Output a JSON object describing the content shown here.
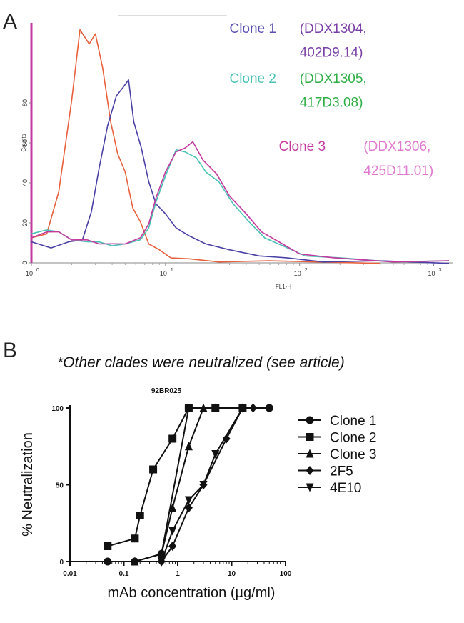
{
  "chart_data": [
    {
      "type": "line",
      "panel_label": "A",
      "xlabel": "FL1-H",
      "ylabel": "Counts",
      "xscale": "log",
      "xlim": [
        1,
        1400
      ],
      "ylim": [
        0,
        120
      ],
      "xticks": [
        {
          "value": 1,
          "base": "10",
          "exp": "0"
        },
        {
          "value": 10,
          "base": "10",
          "exp": "1"
        },
        {
          "value": 100,
          "base": "10",
          "exp": "2"
        },
        {
          "value": 1000,
          "base": "10",
          "exp": "3"
        }
      ],
      "yticks": [
        0,
        20,
        40,
        60,
        80
      ],
      "annotations": [
        {
          "text": "Clone 1",
          "color": "#5a4fb0",
          "x": 30,
          "y": 115
        },
        {
          "text": "(DDX1304,",
          "color": "#7b3fa8",
          "x": 100,
          "y": 115
        },
        {
          "text": "402D9.14)",
          "color": "#7b3fa8",
          "x": 100,
          "y": 103
        },
        {
          "text": "Clone 2",
          "color": "#48c2b4",
          "x": 30,
          "y": 90
        },
        {
          "text": "(DDX1305,",
          "color": "#2fae46",
          "x": 100,
          "y": 90
        },
        {
          "text": "417D3.08)",
          "color": "#2fae46",
          "x": 100,
          "y": 78
        },
        {
          "text": "Clone 3",
          "color": "#c4389f",
          "x": 70,
          "y": 56
        },
        {
          "text": "(DDX1306,",
          "color": "#e07ad0",
          "x": 300,
          "y": 56
        },
        {
          "text": "425D11.01)",
          "color": "#e07ad0",
          "x": 300,
          "y": 44
        }
      ],
      "series": [
        {
          "color": "#e8603c",
          "points": [
            [
              1,
              12
            ],
            [
              1.3,
              15
            ],
            [
              1.6,
              35
            ],
            [
              2.0,
              82
            ],
            [
              2.3,
              116
            ],
            [
              2.7,
              110
            ],
            [
              3.0,
              114
            ],
            [
              3.4,
              98
            ],
            [
              3.9,
              70
            ],
            [
              4.4,
              55
            ],
            [
              5.0,
              45
            ],
            [
              5.7,
              28
            ],
            [
              6.5,
              20
            ],
            [
              7.5,
              10
            ],
            [
              9,
              6
            ],
            [
              11,
              3
            ],
            [
              15,
              1.5
            ],
            [
              25,
              1
            ],
            [
              60,
              0.5
            ],
            [
              400,
              0.3
            ]
          ]
        },
        {
          "color": "#4a40a6",
          "points": [
            [
              1,
              10
            ],
            [
              1.4,
              8
            ],
            [
              1.9,
              10
            ],
            [
              2.4,
              12
            ],
            [
              2.8,
              25
            ],
            [
              3.2,
              48
            ],
            [
              3.7,
              68
            ],
            [
              4.3,
              84
            ],
            [
              4.8,
              87
            ],
            [
              5.3,
              92
            ],
            [
              5.8,
              70
            ],
            [
              6.6,
              58
            ],
            [
              7.5,
              40
            ],
            [
              8.5,
              30
            ],
            [
              10,
              24
            ],
            [
              12,
              18
            ],
            [
              15,
              13
            ],
            [
              20,
              10
            ],
            [
              30,
              6
            ],
            [
              50,
              4
            ],
            [
              80,
              2
            ],
            [
              150,
              1
            ],
            [
              400,
              0.5
            ],
            [
              1300,
              0.3
            ]
          ]
        },
        {
          "color": "#48c2b4",
          "points": [
            [
              1,
              14
            ],
            [
              1.3,
              17
            ],
            [
              1.6,
              15
            ],
            [
              2.0,
              12
            ],
            [
              2.6,
              10
            ],
            [
              3.2,
              11
            ],
            [
              4.0,
              8
            ],
            [
              5.0,
              10
            ],
            [
              6.5,
              11
            ],
            [
              7.5,
              18
            ],
            [
              8.5,
              30
            ],
            [
              10,
              44
            ],
            [
              12,
              56
            ],
            [
              14,
              56
            ],
            [
              17,
              52
            ],
            [
              20,
              46
            ],
            [
              25,
              40
            ],
            [
              32,
              30
            ],
            [
              42,
              20
            ],
            [
              55,
              13
            ],
            [
              75,
              8
            ],
            [
              110,
              4
            ],
            [
              200,
              2
            ],
            [
              500,
              1
            ],
            [
              1300,
              0.5
            ]
          ]
        },
        {
          "color": "#c4389f",
          "points": [
            [
              1,
              12
            ],
            [
              1.3,
              16
            ],
            [
              1.6,
              15
            ],
            [
              2.0,
              12
            ],
            [
              2.6,
              11
            ],
            [
              3.2,
              10
            ],
            [
              4.0,
              9
            ],
            [
              5.0,
              10
            ],
            [
              6.5,
              12
            ],
            [
              7.5,
              20
            ],
            [
              8.5,
              32
            ],
            [
              10,
              46
            ],
            [
              12,
              55
            ],
            [
              14,
              58
            ],
            [
              16,
              60
            ],
            [
              19,
              52
            ],
            [
              24,
              44
            ],
            [
              30,
              34
            ],
            [
              40,
              24
            ],
            [
              52,
              16
            ],
            [
              70,
              10
            ],
            [
              100,
              5
            ],
            [
              180,
              2
            ],
            [
              500,
              1
            ],
            [
              1300,
              0.5
            ]
          ]
        }
      ]
    },
    {
      "type": "line",
      "panel_label": "B",
      "note": "*Other clades were neutralized (see article)",
      "title": "92BR025",
      "xlabel": "mAb concentration (µg/ml)",
      "ylabel": "% Neutralization",
      "xscale": "log",
      "xlim": [
        0.01,
        100
      ],
      "ylim": [
        0,
        100
      ],
      "xticks": [
        {
          "value": 0.01,
          "label": "0.01"
        },
        {
          "value": 0.1,
          "label": "0.1"
        },
        {
          "value": 1,
          "label": "1"
        },
        {
          "value": 10,
          "label": "10"
        },
        {
          "value": 100,
          "label": "100"
        }
      ],
      "yticks": [
        {
          "value": 0,
          "label": "0"
        },
        {
          "value": 50,
          "label": "50"
        },
        {
          "value": 100,
          "label": "100"
        }
      ],
      "series": [
        {
          "name": "Clone 1",
          "marker": "circle",
          "points": [
            [
              0.05,
              0
            ],
            [
              0.16,
              0
            ],
            [
              0.5,
              5
            ],
            [
              1.6,
              100
            ],
            [
              5,
              100
            ],
            [
              16,
              100
            ],
            [
              50,
              100
            ]
          ]
        },
        {
          "name": "Clone 2",
          "marker": "square",
          "points": [
            [
              0.05,
              10
            ],
            [
              0.16,
              15
            ],
            [
              0.2,
              30
            ],
            [
              0.35,
              60
            ],
            [
              0.8,
              80
            ],
            [
              1.6,
              100
            ],
            [
              5,
              100
            ],
            [
              16,
              100
            ]
          ]
        },
        {
          "name": "Clone 3",
          "marker": "triangle",
          "points": [
            [
              0.16,
              0
            ],
            [
              0.5,
              5
            ],
            [
              0.8,
              35
            ],
            [
              1.6,
              75
            ],
            [
              3,
              100
            ],
            [
              5,
              100
            ]
          ]
        },
        {
          "name": "2F5",
          "marker": "diamond",
          "points": [
            [
              0.5,
              0
            ],
            [
              0.8,
              10
            ],
            [
              1.6,
              35
            ],
            [
              3,
              50
            ],
            [
              8,
              80
            ],
            [
              16,
              100
            ],
            [
              25,
              100
            ]
          ]
        },
        {
          "name": "4E10",
          "marker": "inv-triangle",
          "points": [
            [
              0.5,
              0
            ],
            [
              0.8,
              20
            ],
            [
              1.6,
              40
            ],
            [
              3,
              50
            ],
            [
              5,
              70
            ],
            [
              16,
              100
            ]
          ]
        }
      ]
    }
  ]
}
